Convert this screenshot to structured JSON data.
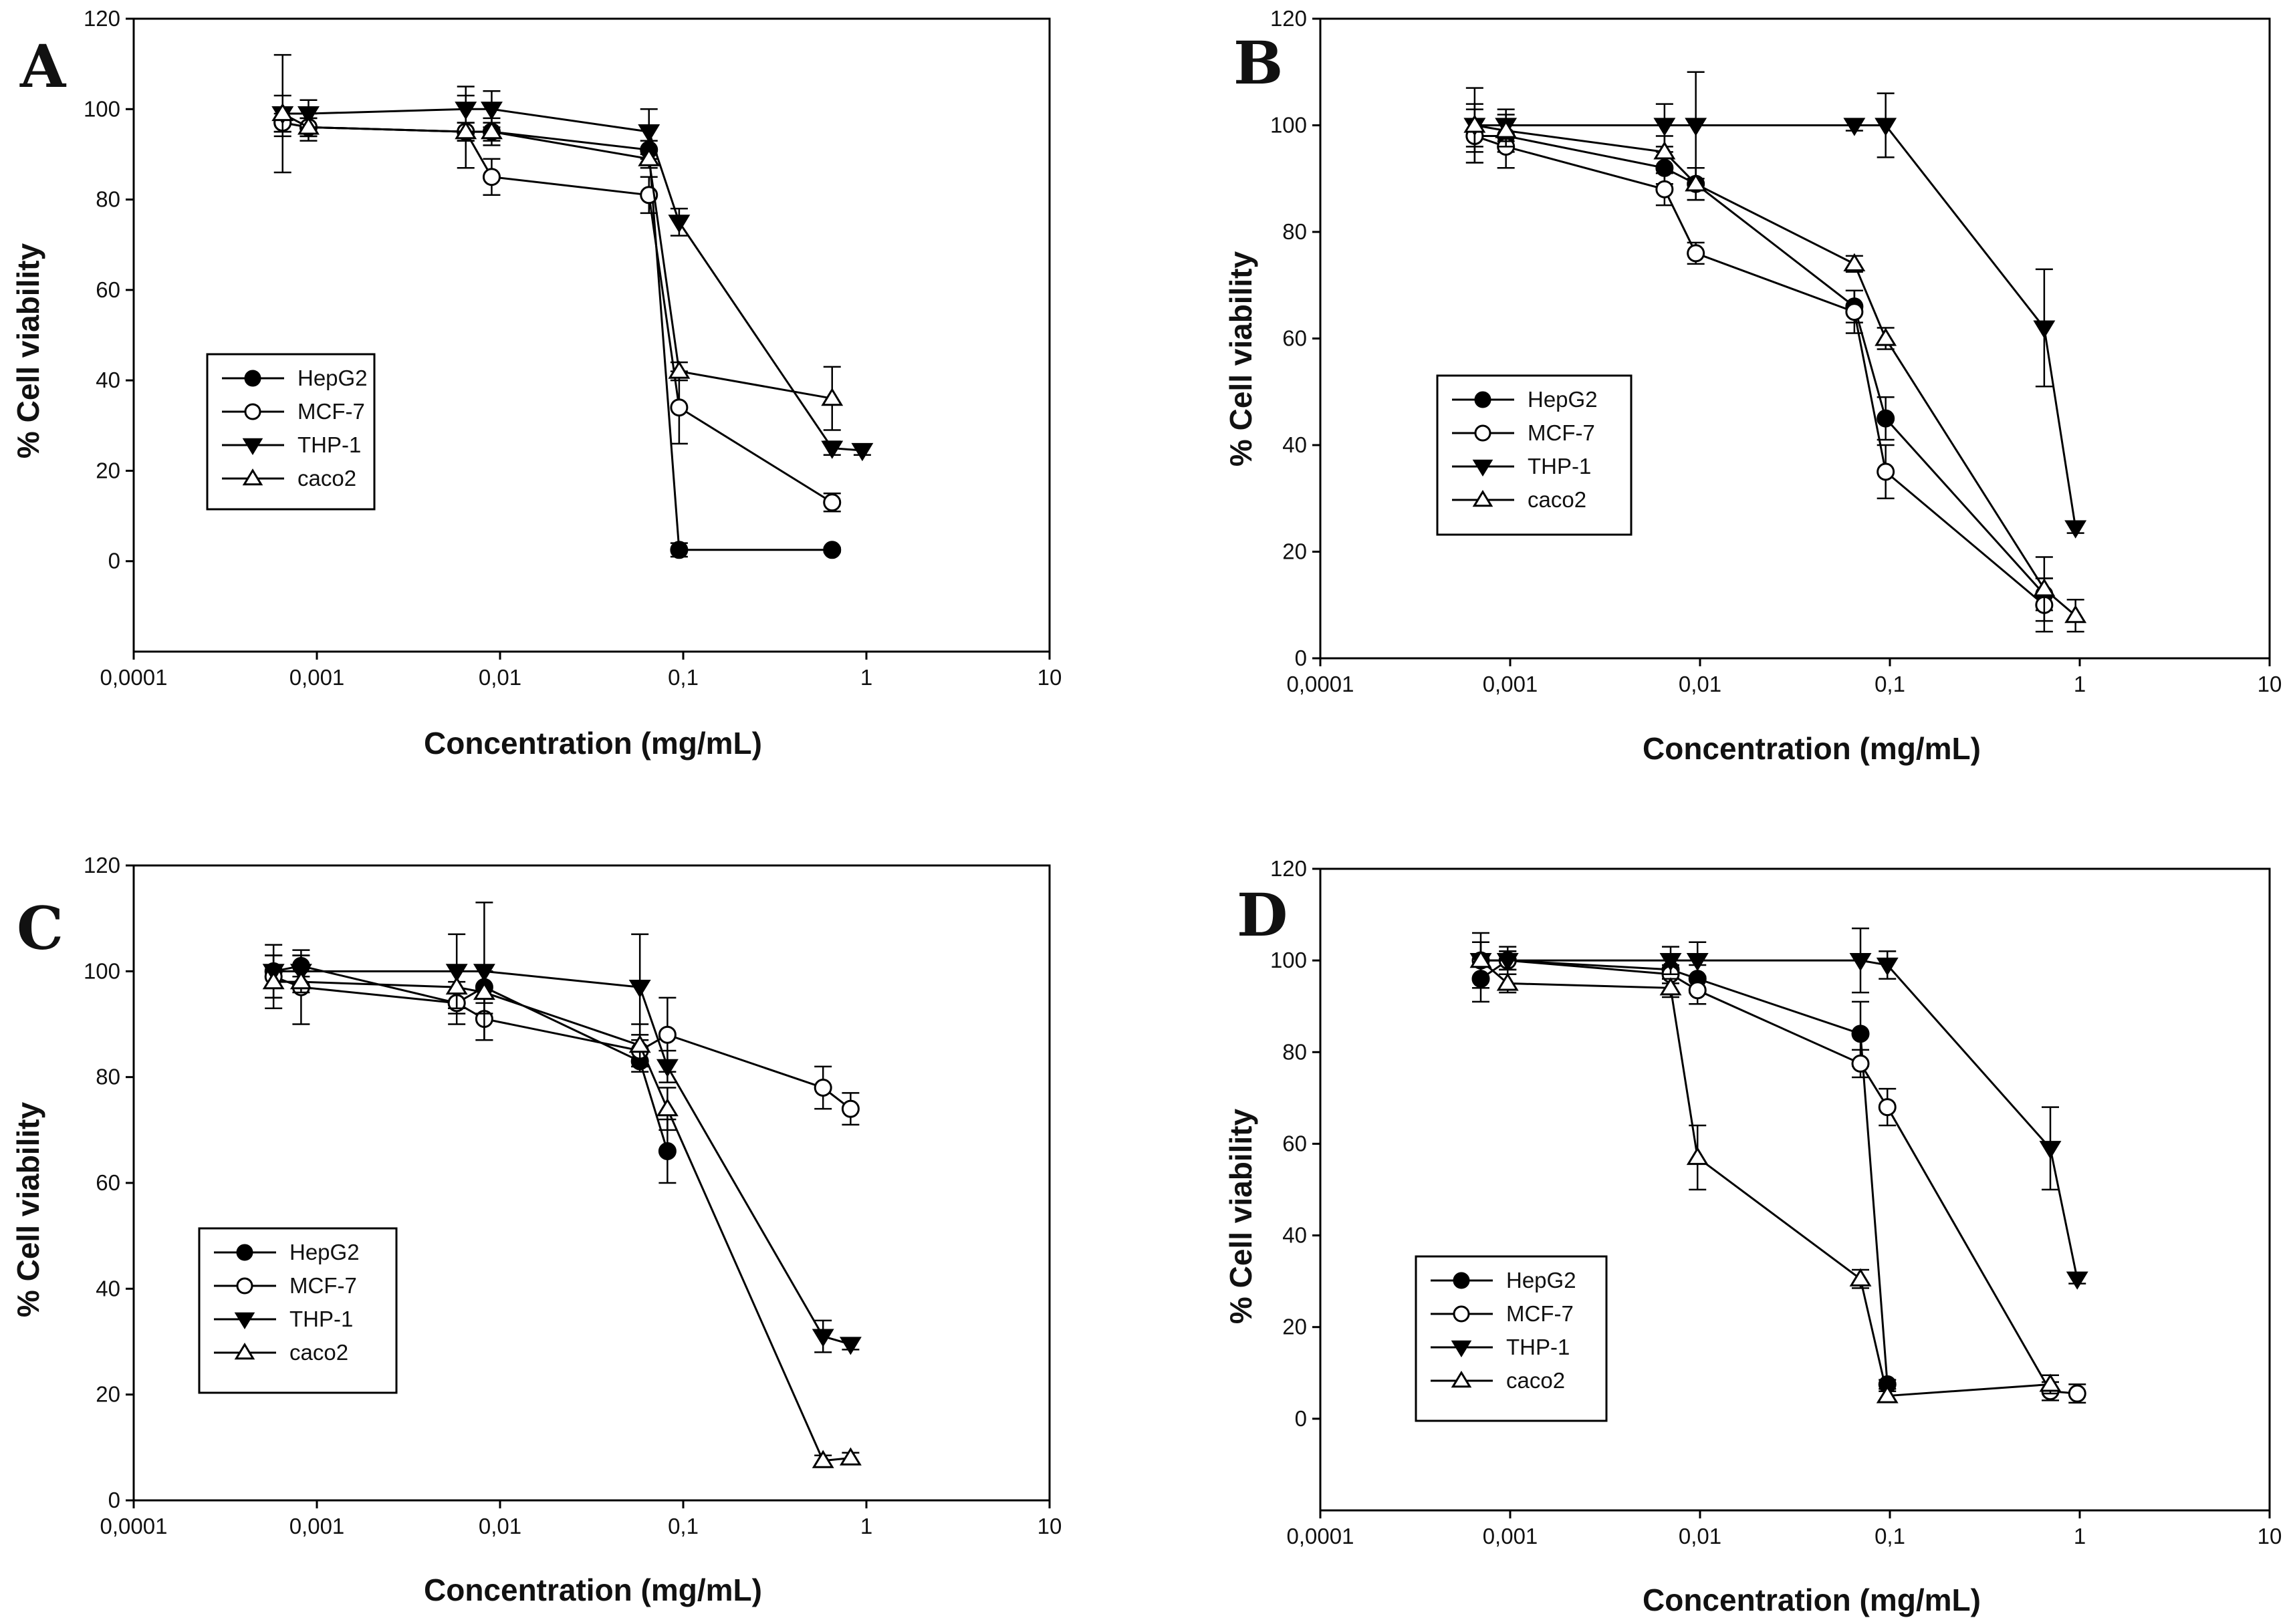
{
  "chart_data": [
    {
      "panel": "A",
      "type": "line",
      "x_scale": "log",
      "xlabel": "Concentration (mg/mL)",
      "ylabel": "% Cell viability",
      "ylim": [
        -20,
        120
      ],
      "yticks": [
        0,
        20,
        40,
        60,
        80,
        100,
        120
      ],
      "xlim": [
        0.0001,
        10
      ],
      "xticks": [
        "0,0001",
        "0,001",
        "0,01",
        "0,1",
        "1",
        "10"
      ],
      "series": [
        {
          "name": "HepG2",
          "marker": "filled-circle",
          "x": [
            0.00065,
            0.0009,
            0.0065,
            0.009,
            0.065,
            0.095,
            0.65
          ],
          "y": [
            97,
            96,
            95,
            95,
            91,
            2.5,
            2.5
          ],
          "err": [
            2,
            2,
            2,
            2,
            2,
            1.5,
            0.5
          ]
        },
        {
          "name": "MCF-7",
          "marker": "open-circle",
          "x": [
            0.00065,
            0.0009,
            0.0065,
            0.009,
            0.065,
            0.095,
            0.65
          ],
          "y": [
            97,
            96,
            95,
            85,
            81,
            34,
            13
          ],
          "err": [
            3,
            2,
            2,
            4,
            4,
            8,
            2
          ]
        },
        {
          "name": "THP-1",
          "marker": "filled-triangle-down",
          "x": [
            0.00065,
            0.0009,
            0.0065,
            0.009,
            0.065,
            0.095,
            0.65,
            0.95
          ],
          "y": [
            99,
            99,
            100,
            100,
            95,
            75,
            25,
            24.5
          ],
          "err": [
            13,
            3,
            5,
            4,
            5,
            3,
            1.5,
            1
          ]
        },
        {
          "name": "caco2",
          "marker": "open-triangle-up",
          "x": [
            0.00065,
            0.0009,
            0.0065,
            0.009,
            0.065,
            0.095,
            0.65
          ],
          "y": [
            99,
            96,
            95,
            95,
            89,
            42,
            36
          ],
          "err": [
            4,
            3,
            8,
            3,
            2,
            2,
            7
          ]
        }
      ],
      "legend": [
        "HepG2",
        "MCF-7",
        "THP-1",
        "caco2"
      ]
    },
    {
      "panel": "B",
      "type": "line",
      "x_scale": "log",
      "xlabel": "Concentration (mg/mL)",
      "ylabel": "% Cell viability",
      "ylim": [
        0,
        120
      ],
      "yticks": [
        0,
        20,
        40,
        60,
        80,
        100,
        120
      ],
      "xlim": [
        0.0001,
        10
      ],
      "xticks": [
        "0,0001",
        "0,001",
        "0,01",
        "0,1",
        "1",
        "10"
      ],
      "series": [
        {
          "name": "HepG2",
          "marker": "filled-circle",
          "x": [
            0.00065,
            0.00095,
            0.0065,
            0.0095,
            0.065,
            0.095,
            0.65
          ],
          "y": [
            98,
            98,
            92,
            89,
            66,
            45,
            12
          ],
          "err": [
            3,
            3,
            3,
            3,
            3,
            4,
            3
          ]
        },
        {
          "name": "MCF-7",
          "marker": "open-circle",
          "x": [
            0.00065,
            0.00095,
            0.0065,
            0.0095,
            0.065,
            0.095,
            0.65
          ],
          "y": [
            98,
            96,
            88,
            76,
            65,
            35,
            10
          ],
          "err": [
            5,
            4,
            3,
            2,
            4,
            5,
            5
          ]
        },
        {
          "name": "THP-1",
          "marker": "filled-triangle-down",
          "x": [
            0.00065,
            0.00095,
            0.0065,
            0.0095,
            0.065,
            0.095,
            0.65,
            0.95
          ],
          "y": [
            100,
            100,
            100,
            100,
            100,
            100,
            62,
            24.5
          ],
          "err": [
            7,
            3,
            4,
            10,
            1,
            6,
            11,
            1
          ]
        },
        {
          "name": "caco2",
          "marker": "open-triangle-up",
          "x": [
            0.00065,
            0.00095,
            0.0065,
            0.0095,
            0.065,
            0.095,
            0.65,
            0.95
          ],
          "y": [
            100,
            99,
            95,
            89,
            74,
            60,
            13,
            8
          ],
          "err": [
            4,
            3,
            3,
            3,
            1.5,
            2,
            6,
            3
          ]
        }
      ],
      "legend": [
        "HepG2",
        "MCF-7",
        "THP-1",
        "caco2"
      ]
    },
    {
      "panel": "C",
      "type": "line",
      "x_scale": "log",
      "xlabel": "Concentration (mg/mL)",
      "ylabel": "% Cell viability",
      "ylim": [
        0,
        120
      ],
      "yticks": [
        0,
        20,
        40,
        60,
        80,
        100,
        120
      ],
      "xlim": [
        0.0001,
        10
      ],
      "xticks": [
        "0,0001",
        "0,001",
        "0,01",
        "0,1",
        "1",
        "10"
      ],
      "series": [
        {
          "name": "HepG2",
          "marker": "filled-circle",
          "x": [
            0.00058,
            0.00082,
            0.0058,
            0.0082,
            0.058,
            0.082
          ],
          "y": [
            100,
            101,
            94,
            97,
            83,
            66
          ],
          "err": [
            3,
            2,
            2,
            3,
            2,
            6
          ]
        },
        {
          "name": "MCF-7",
          "marker": "open-circle",
          "x": [
            0.00058,
            0.00082,
            0.0058,
            0.0082,
            0.058,
            0.082,
            0.58,
            0.82
          ],
          "y": [
            99,
            97,
            94,
            91,
            85,
            88,
            78,
            74
          ],
          "err": [
            4,
            7,
            4,
            4,
            3,
            7,
            4,
            3
          ]
        },
        {
          "name": "THP-1",
          "marker": "filled-triangle-down",
          "x": [
            0.00058,
            0.00082,
            0.0058,
            0.0082,
            0.058,
            0.082,
            0.58,
            0.82
          ],
          "y": [
            100,
            100,
            100,
            100,
            97,
            82,
            31,
            29.5
          ],
          "err": [
            5,
            3,
            7,
            13,
            10,
            3,
            3,
            1
          ]
        },
        {
          "name": "caco2",
          "marker": "open-triangle-up",
          "x": [
            0.00058,
            0.00082,
            0.0058,
            0.0082,
            0.058,
            0.082,
            0.58,
            0.82
          ],
          "y": [
            98,
            98,
            97,
            96,
            86,
            74,
            7.5,
            8
          ],
          "err": [
            5,
            2,
            4,
            4,
            4,
            4,
            1,
            1
          ]
        }
      ],
      "legend": [
        "HepG2",
        "MCF-7",
        "THP-1",
        "caco2"
      ]
    },
    {
      "panel": "D",
      "type": "line",
      "x_scale": "log",
      "xlabel": "Concentration (mg/mL)",
      "ylabel": "% Cell viability",
      "ylim": [
        -20,
        120
      ],
      "yticks": [
        0,
        20,
        40,
        60,
        80,
        100,
        120
      ],
      "xlim": [
        0.0001,
        10
      ],
      "xticks": [
        "0,0001",
        "0,001",
        "0,01",
        "0,1",
        "1",
        "10"
      ],
      "series": [
        {
          "name": "HepG2",
          "marker": "filled-circle",
          "x": [
            0.0007,
            0.00097,
            0.007,
            0.0097,
            0.07,
            0.097
          ],
          "y": [
            96,
            100,
            98,
            96,
            84,
            7.5
          ],
          "err": [
            5,
            2,
            2,
            3,
            7,
            1
          ]
        },
        {
          "name": "MCF-7",
          "marker": "open-circle",
          "x": [
            0.0007,
            0.00097,
            0.007,
            0.0097,
            0.07,
            0.097,
            0.7,
            0.97
          ],
          "y": [
            100,
            100,
            97,
            93.5,
            77.5,
            68,
            6,
            5.5
          ],
          "err": [
            6,
            3,
            2,
            3,
            3,
            4,
            2,
            2
          ]
        },
        {
          "name": "THP-1",
          "marker": "filled-triangle-down",
          "x": [
            0.0007,
            0.00097,
            0.007,
            0.0097,
            0.07,
            0.097,
            0.7,
            0.97
          ],
          "y": [
            100,
            100,
            100,
            100,
            100,
            99,
            59,
            30.5
          ],
          "err": [
            4,
            2,
            3,
            4,
            7,
            3,
            9,
            1
          ]
        },
        {
          "name": "caco2",
          "marker": "open-triangle-up",
          "x": [
            0.0007,
            0.00097,
            0.007,
            0.0097,
            0.07,
            0.097,
            0.7
          ],
          "y": [
            100,
            95,
            94,
            57,
            30.5,
            5,
            7.5
          ],
          "err": [
            4,
            2,
            2,
            7,
            2,
            1,
            2
          ]
        }
      ],
      "legend": [
        "HepG2",
        "MCF-7",
        "THP-1",
        "caco2"
      ]
    }
  ]
}
